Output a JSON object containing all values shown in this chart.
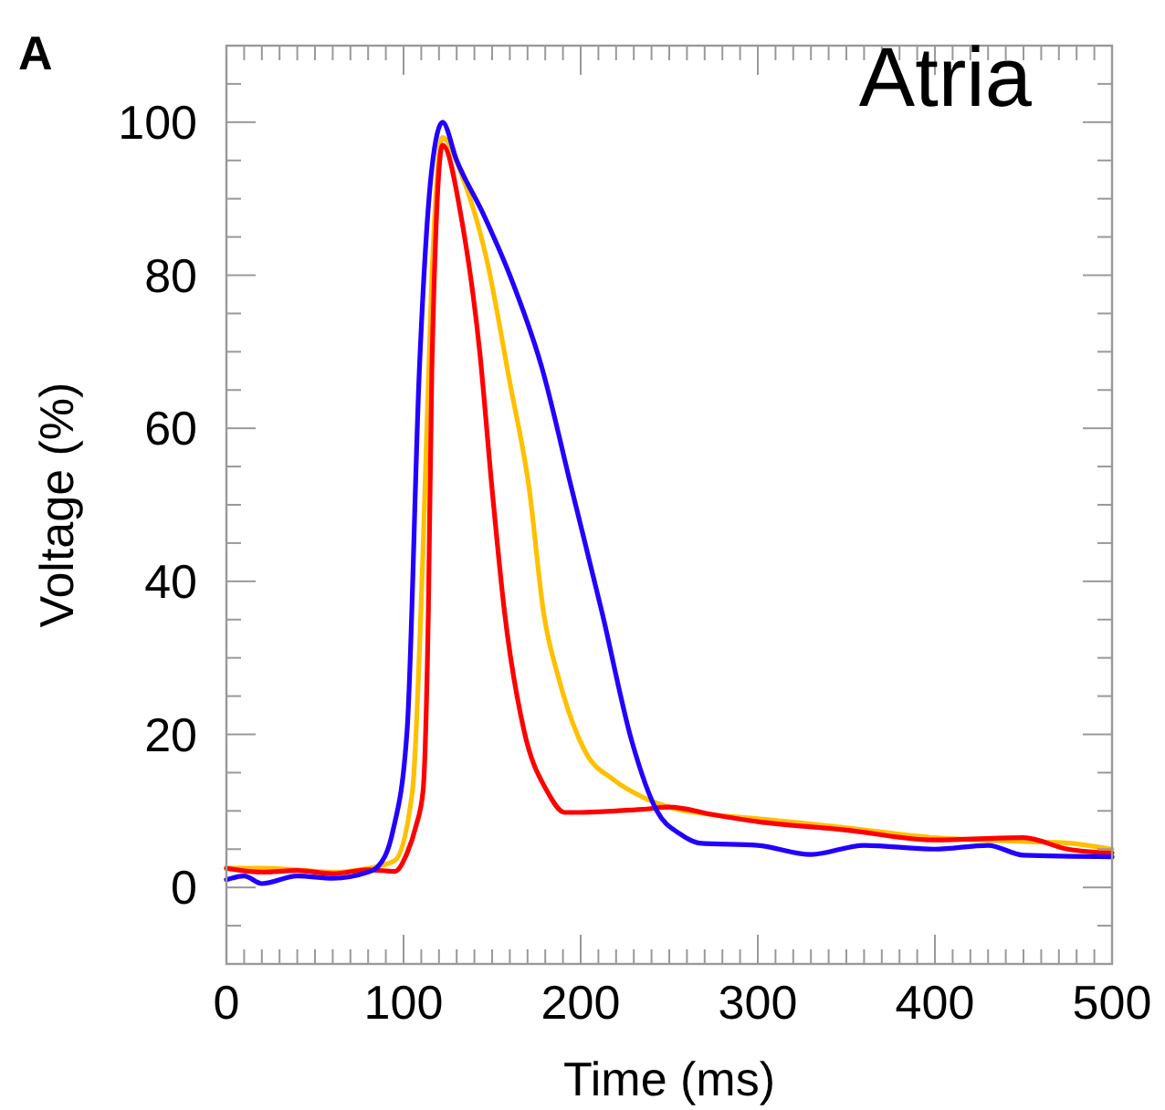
{
  "chart_data": {
    "type": "line",
    "xlabel": "Time (ms)",
    "ylabel": "Voltage (%)",
    "annotations": [
      "A",
      "Atria"
    ],
    "xlim": [
      0,
      500
    ],
    "ylim": [
      -10,
      110
    ],
    "xticks": [
      0,
      {
        "value": 10,
        "label": null
      },
      {
        "value": 20,
        "label": null
      },
      {
        "value": 30,
        "label": null
      },
      {
        "value": 40,
        "label": null
      },
      {
        "value": 50,
        "label": null
      },
      {
        "value": 60,
        "label": null
      },
      {
        "value": 70,
        "label": null
      },
      {
        "value": 80,
        "label": null
      },
      {
        "value": 90,
        "label": null
      },
      100,
      {
        "value": 110,
        "label": null
      },
      {
        "value": 120,
        "label": null
      },
      {
        "value": 130,
        "label": null
      },
      {
        "value": 140,
        "label": null
      },
      {
        "value": 150,
        "label": null
      },
      {
        "value": 160,
        "label": null
      },
      {
        "value": 170,
        "label": null
      },
      {
        "value": 180,
        "label": null
      },
      {
        "value": 190,
        "label": null
      },
      200,
      {
        "value": 210,
        "label": null
      },
      {
        "value": 220,
        "label": null
      },
      {
        "value": 230,
        "label": null
      },
      {
        "value": 240,
        "label": null
      },
      {
        "value": 250,
        "label": null
      },
      {
        "value": 260,
        "label": null
      },
      {
        "value": 270,
        "label": null
      },
      {
        "value": 280,
        "label": null
      },
      {
        "value": 290,
        "label": null
      },
      300,
      {
        "value": 310,
        "label": null
      },
      {
        "value": 320,
        "label": null
      },
      {
        "value": 330,
        "label": null
      },
      {
        "value": 340,
        "label": null
      },
      {
        "value": 350,
        "label": null
      },
      {
        "value": 360,
        "label": null
      },
      {
        "value": 370,
        "label": null
      },
      {
        "value": 380,
        "label": null
      },
      {
        "value": 390,
        "label": null
      },
      400,
      {
        "value": 410,
        "label": null
      },
      {
        "value": 420,
        "label": null
      },
      {
        "value": 430,
        "label": null
      },
      {
        "value": 440,
        "label": null
      },
      {
        "value": 450,
        "label": null
      },
      {
        "value": 460,
        "label": null
      },
      {
        "value": 470,
        "label": null
      },
      {
        "value": 480,
        "label": null
      },
      {
        "value": 490,
        "label": null
      },
      500
    ],
    "yticks": [
      {
        "value": -5,
        "label": null
      },
      0,
      {
        "value": 5,
        "label": null
      },
      {
        "value": 10,
        "label": null
      },
      {
        "value": 15,
        "label": null
      },
      20,
      {
        "value": 25,
        "label": null
      },
      {
        "value": 30,
        "label": null
      },
      {
        "value": 35,
        "label": null
      },
      40,
      {
        "value": 45,
        "label": null
      },
      {
        "value": 50,
        "label": null
      },
      {
        "value": 55,
        "label": null
      },
      60,
      {
        "value": 65,
        "label": null
      },
      {
        "value": 70,
        "label": null
      },
      {
        "value": 75,
        "label": null
      },
      80,
      {
        "value": 85,
        "label": null
      },
      {
        "value": 90,
        "label": null
      },
      {
        "value": 95,
        "label": null
      },
      100,
      {
        "value": 105,
        "label": null
      }
    ],
    "series": [
      {
        "color": "#ffc000",
        "x": [
          0,
          20,
          40,
          60,
          80,
          95,
          105,
          111,
          116,
          122,
          133,
          147,
          160,
          171,
          179,
          188,
          202,
          219,
          236,
          250,
          275,
          300,
          350,
          400,
          450,
          475,
          500
        ],
        "values": [
          2.5,
          2.5,
          2.3,
          2,
          2.5,
          3.5,
          12.6,
          44,
          80,
          98,
          93,
          82,
          66,
          52,
          36,
          27,
          18,
          14,
          11.7,
          10.5,
          9.5,
          9,
          7.8,
          6.5,
          6,
          5.8,
          5
        ]
      },
      {
        "color": "#ff0000",
        "x": [
          0,
          20,
          40,
          60,
          80,
          95,
          102,
          107,
          111,
          114,
          116,
          122,
          133,
          143,
          150,
          157,
          168,
          181,
          191,
          200,
          220,
          235,
          250,
          275,
          300,
          350,
          400,
          450,
          475,
          500
        ],
        "values": [
          2.5,
          2,
          2.2,
          1.8,
          2.3,
          2.1,
          4.5,
          8,
          12.6,
          36,
          68,
          97,
          87,
          70,
          52,
          36,
          20.5,
          12.6,
          9.8,
          9.8,
          10,
          10.2,
          10.5,
          9.5,
          8.6,
          7.5,
          6.2,
          6.5,
          5,
          4.5
        ]
      },
      {
        "color": "#2200ff",
        "x": [
          0,
          10,
          20,
          40,
          60,
          80,
          85,
          94,
          102,
          109,
          116,
          122,
          130,
          145,
          160,
          178,
          195,
          212,
          229,
          243,
          256,
          267,
          300,
          330,
          360,
          400,
          430,
          450,
          500
        ],
        "values": [
          1,
          1.5,
          0.5,
          1.5,
          1.2,
          2,
          2.6,
          7.4,
          20.5,
          68,
          94,
          100,
          95,
          88,
          80,
          68,
          52,
          36,
          19,
          10,
          7,
          5.8,
          5.5,
          4.3,
          5.5,
          5,
          5.5,
          4.2,
          4
        ]
      }
    ]
  }
}
